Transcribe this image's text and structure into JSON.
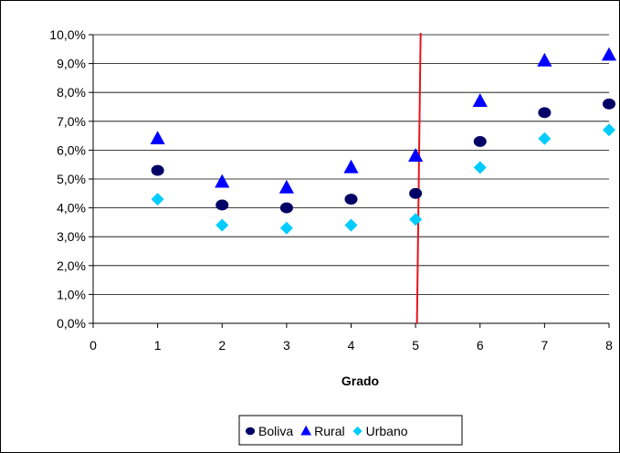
{
  "chart_data": {
    "type": "scatter",
    "title": "",
    "xlabel": "Grado",
    "ylabel": "",
    "xlim": [
      0,
      8
    ],
    "ylim": [
      0,
      10
    ],
    "x_ticks": [
      "0",
      "1",
      "2",
      "3",
      "4",
      "5",
      "6",
      "7",
      "8"
    ],
    "y_ticks": [
      "0,0%",
      "1,0%",
      "2,0%",
      "3,0%",
      "4,0%",
      "5,0%",
      "6,0%",
      "7,0%",
      "8,0%",
      "9,0%",
      "10,0%"
    ],
    "grid": "horizontal",
    "legend_position": "bottom",
    "vertical_marker_x": 5.05,
    "vertical_marker_color": "#e8141b",
    "x": [
      1,
      2,
      3,
      4,
      5,
      6,
      7,
      8
    ],
    "series": [
      {
        "name": "Boliva",
        "marker": "circle",
        "color": "#000066",
        "values": [
          5.3,
          4.1,
          4.0,
          4.3,
          4.5,
          6.3,
          7.3,
          7.6
        ]
      },
      {
        "name": "Rural",
        "marker": "triangle",
        "color": "#0000ff",
        "values": [
          6.4,
          4.9,
          4.7,
          5.4,
          5.8,
          7.7,
          9.1,
          9.3
        ]
      },
      {
        "name": "Urbano",
        "marker": "diamond",
        "color": "#00ccff",
        "values": [
          4.3,
          3.4,
          3.3,
          3.4,
          3.6,
          5.4,
          6.4,
          6.7
        ]
      }
    ]
  }
}
